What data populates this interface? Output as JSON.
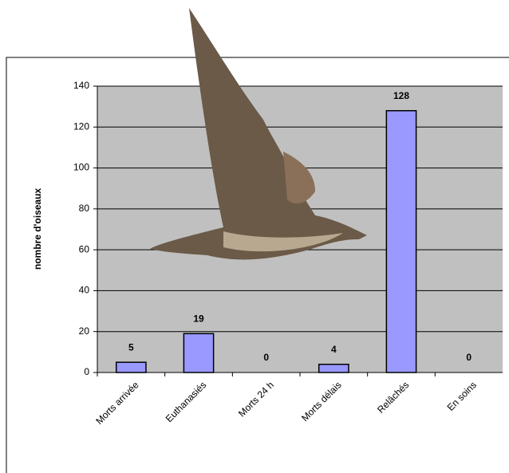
{
  "chart_data": {
    "type": "bar",
    "y_label": "nombre d'oiseaux",
    "categories": [
      "Morts arrivée",
      "Euthanasiés",
      "Morts 24 h",
      "Morts délais",
      "Relâchés",
      "En soins"
    ],
    "values": [
      5,
      19,
      0,
      4,
      128,
      0
    ],
    "color": "#9999ff",
    "ylim": [
      0,
      140
    ],
    "yticks": [
      0,
      20,
      40,
      60,
      80,
      100,
      120,
      140
    ],
    "grid": true
  }
}
